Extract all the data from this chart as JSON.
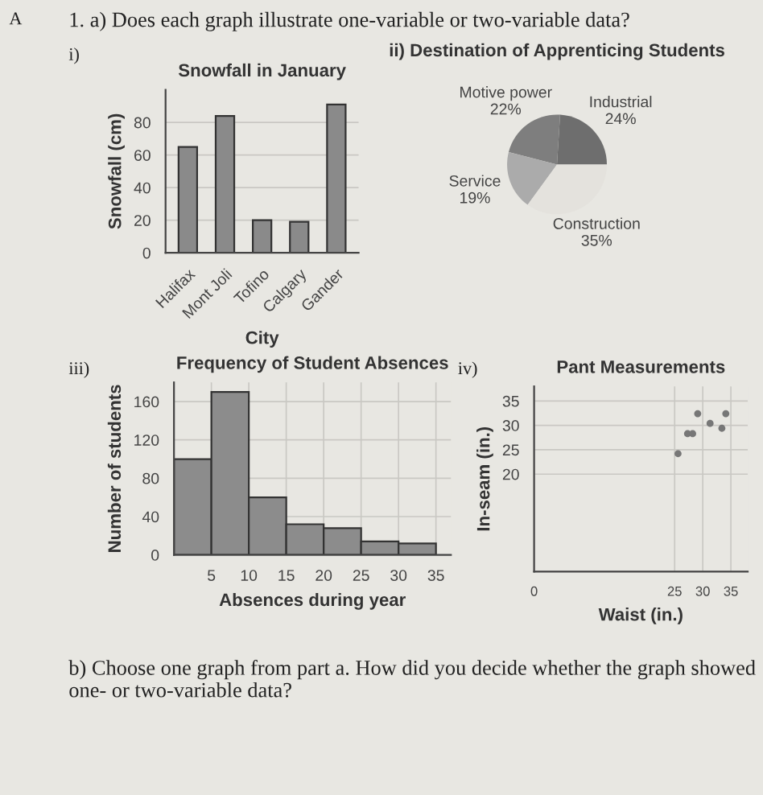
{
  "chart_data": [
    {
      "type": "bar",
      "title": "Snowfall in January",
      "xlabel": "City",
      "ylabel": "Snowfall (cm)",
      "categories": [
        "Halifax",
        "Mont Joli",
        "Tofino",
        "Calgary",
        "Gander"
      ],
      "values": [
        65,
        84,
        20,
        19,
        91
      ],
      "color": "#8a8a8a",
      "ylim": [
        0,
        100
      ],
      "yticks": [
        0,
        20,
        40,
        60,
        80
      ],
      "grid": true,
      "annotations": [
        "A",
        "1. a) Does each graph illustrate one-variable or two-variable data?",
        "i)"
      ]
    },
    {
      "type": "pie",
      "title": "ii) Destination of Apprenticing Students",
      "categories": [
        "Industrial",
        "Motive power",
        "Service",
        "Construction"
      ],
      "values": [
        24,
        22,
        19,
        35
      ],
      "value_labels": [
        "24%",
        "22%",
        "19%",
        "35%"
      ],
      "colors": [
        "#6e6e6e",
        "#7e7e7e",
        "#ababab",
        "#e4e2dd"
      ]
    },
    {
      "type": "histogram",
      "title": "Frequency of Student Absences",
      "xlabel": "Absences during year",
      "ylabel": "Number of students",
      "bins": [
        0,
        5,
        10,
        15,
        20,
        25,
        30,
        35
      ],
      "values": [
        100,
        170,
        60,
        32,
        28,
        14,
        12
      ],
      "color": "#8c8c8c",
      "xlim": [
        0,
        37
      ],
      "xticks": [
        5,
        10,
        15,
        20,
        25,
        30,
        35
      ],
      "ylim": [
        0,
        180
      ],
      "yticks": [
        0,
        40,
        80,
        120,
        160
      ],
      "grid": true,
      "annotations": [
        "iii)"
      ]
    },
    {
      "type": "scatter",
      "title": "Pant Measurements",
      "xlabel": "Waist (in.)",
      "ylabel": "In-seam (in.)",
      "x": [
        25.6,
        27.3,
        28.2,
        29.1,
        31.3,
        33.4,
        34.1
      ],
      "values": [
        24.2,
        28.3,
        28.3,
        32.4,
        30.4,
        29.4,
        32.4
      ],
      "color": "#777777",
      "marker": "circle",
      "xlim": [
        0,
        38
      ],
      "xticks": [
        0,
        25,
        30,
        35
      ],
      "ylim": [
        0,
        38
      ],
      "yticks": [
        {
          "value": 0,
          "label": null
        },
        20,
        25,
        30,
        35
      ],
      "grid": true,
      "annotations": [
        "iv)",
        "b) Choose one graph from part a. How did you decide whether the graph showed one- or two-variable data?"
      ]
    }
  ]
}
